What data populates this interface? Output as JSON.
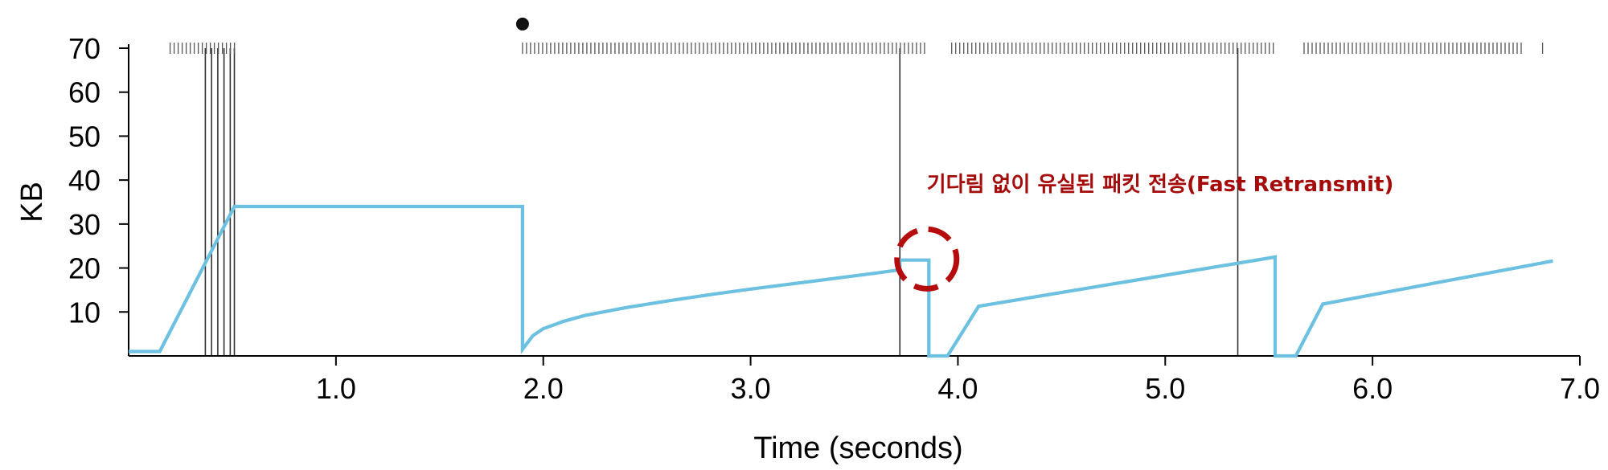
{
  "chart_data": {
    "type": "line",
    "xlabel": "Time (seconds)",
    "ylabel": "KB",
    "xlim": [
      0,
      7.0
    ],
    "ylim": [
      0,
      70
    ],
    "x_ticks": [
      {
        "value": 1.0,
        "label": "1.0"
      },
      {
        "value": 2.0,
        "label": "2.0"
      },
      {
        "value": 3.0,
        "label": "3.0"
      },
      {
        "value": 4.0,
        "label": "4.0"
      },
      {
        "value": 5.0,
        "label": "5.0"
      },
      {
        "value": 6.0,
        "label": "6.0"
      },
      {
        "value": 7.0,
        "label": "7.0"
      }
    ],
    "y_ticks": [
      {
        "value": 10,
        "label": "10"
      },
      {
        "value": 20,
        "label": "20"
      },
      {
        "value": 30,
        "label": "30"
      },
      {
        "value": 40,
        "label": "40"
      },
      {
        "value": 50,
        "label": "50"
      },
      {
        "value": 60,
        "label": "60"
      },
      {
        "value": 70,
        "label": "70"
      }
    ],
    "grid": false,
    "series": [
      {
        "color": "#6cc0e0",
        "points": [
          [
            0.0,
            1.0
          ],
          [
            0.15,
            1.0
          ],
          [
            0.51,
            34.0
          ],
          [
            1.9,
            34.0
          ],
          [
            1.9,
            1.5
          ],
          [
            1.95,
            4.6
          ],
          [
            2.0,
            6.2
          ],
          [
            2.1,
            7.9
          ],
          [
            2.2,
            9.2
          ],
          [
            2.4,
            11.0
          ],
          [
            2.6,
            12.5
          ],
          [
            2.8,
            13.9
          ],
          [
            3.0,
            15.2
          ],
          [
            3.2,
            16.4
          ],
          [
            3.4,
            17.6
          ],
          [
            3.6,
            18.8
          ],
          [
            3.72,
            19.6
          ],
          [
            3.72,
            21.8
          ],
          [
            3.86,
            21.8
          ],
          [
            3.86,
            0.0
          ],
          [
            3.95,
            0.0
          ],
          [
            4.1,
            11.3
          ],
          [
            5.53,
            22.5
          ],
          [
            5.53,
            0.0
          ],
          [
            5.63,
            0.0
          ],
          [
            5.76,
            11.8
          ],
          [
            6.87,
            21.6
          ]
        ]
      }
    ],
    "vertical_lines_x": [
      0.37,
      0.4,
      0.43,
      0.46,
      0.49,
      0.51,
      3.72,
      5.35
    ],
    "marker_rows": [
      {
        "from": 0.2,
        "to": 0.52,
        "y": 70
      },
      {
        "from": 1.9,
        "to": 3.84,
        "y": 70
      },
      {
        "from": 3.97,
        "to": 5.53,
        "y": 70
      },
      {
        "from": 5.67,
        "to": 6.72,
        "y": 70
      },
      {
        "from": 6.82,
        "to": 6.82,
        "y": 70
      }
    ],
    "dot": {
      "x": 1.9,
      "y": 75.5
    },
    "annotations": [
      {
        "text": "기다림 없이 유실된 패킷 전송(Fast Retransmit)",
        "x": 3.85,
        "y": 21.5,
        "color": "#b50d0d"
      }
    ]
  }
}
